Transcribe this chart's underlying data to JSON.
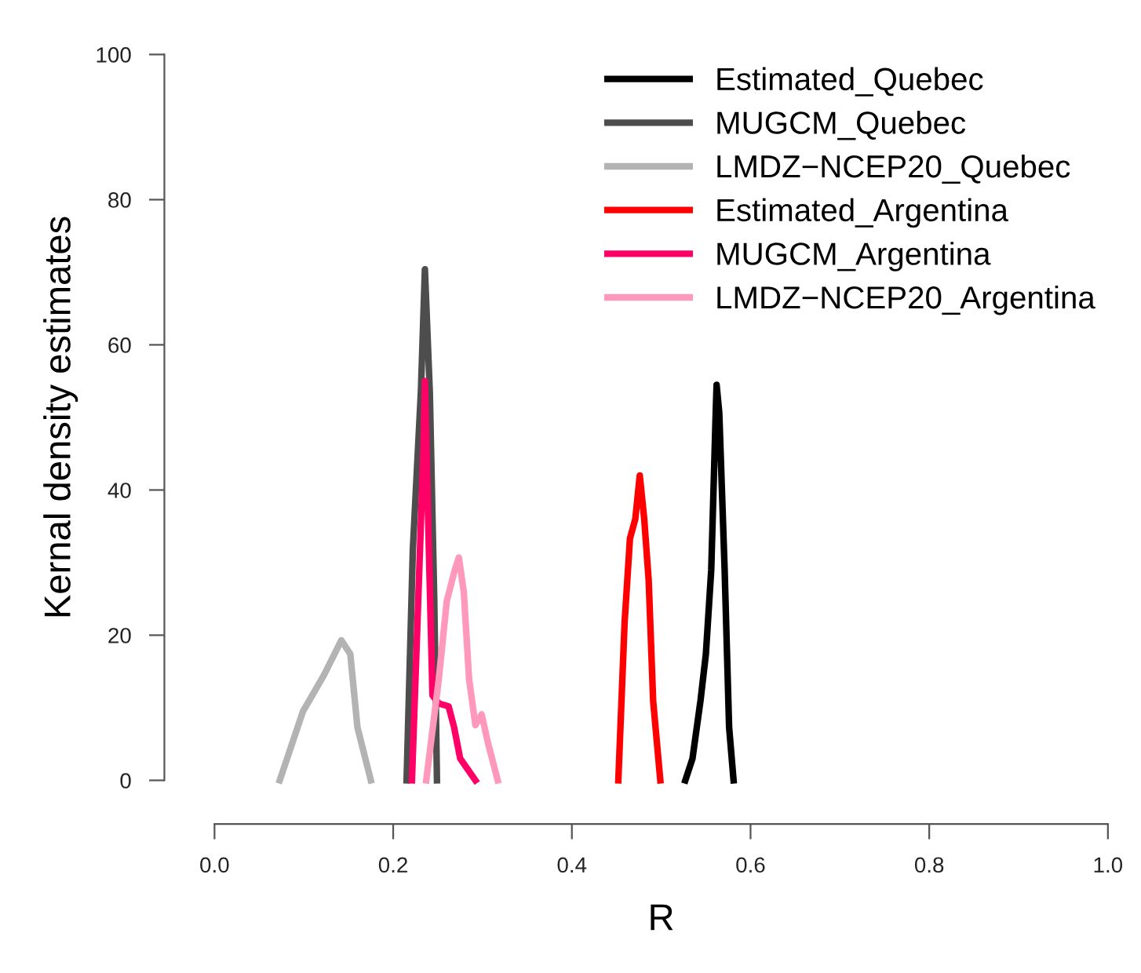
{
  "chart_data": {
    "type": "line",
    "xlabel": "R",
    "ylabel": "Kernal density estimates",
    "xlim": [
      0,
      1
    ],
    "ylim": [
      0,
      100
    ],
    "xticks": [
      {
        "value": 0,
        "label": "0.0"
      },
      0.2,
      0.4,
      0.6,
      0.8,
      {
        "value": 1,
        "label": "1.0"
      }
    ],
    "yticks": [
      0,
      20,
      40,
      60,
      80,
      100
    ],
    "legend": "top right",
    "grid": false,
    "line_style": "solid",
    "marker": "none",
    "series": [
      {
        "name": "Estimated_Quebec",
        "color": "#000000",
        "x": [
          0.527,
          0.535,
          0.544,
          0.55,
          0.556,
          0.561,
          0.562,
          0.565,
          0.571,
          0.576,
          0.581
        ],
        "values": [
          0,
          3,
          11,
          17.4,
          29,
          50.6,
          54.5,
          50.6,
          29,
          7.3,
          0
        ]
      },
      {
        "name": "MUGCM_Quebec",
        "color": "#4d4d4d",
        "x": [
          0.215,
          0.222,
          0.231,
          0.2355,
          0.241,
          0.246,
          0.249
        ],
        "values": [
          0,
          31.8,
          53.5,
          70.4,
          53.5,
          24.7,
          0
        ]
      },
      {
        "name": "LMDZ−NCEP20_Quebec",
        "color": "#b3b3b3",
        "x": [
          0.073,
          0.099,
          0.1225,
          0.142,
          0.152,
          0.16,
          0.175
        ],
        "values": [
          0,
          9.5,
          14.5,
          19.3,
          17.4,
          7.3,
          0
        ]
      },
      {
        "name": "Estimated_Argentina",
        "color": "#ff0000",
        "x": [
          0.452,
          0.459,
          0.465,
          0.471,
          0.476,
          0.481,
          0.486,
          0.491,
          0.499
        ],
        "values": [
          0,
          21.7,
          33.3,
          36,
          42,
          36,
          27.5,
          10.9,
          0
        ]
      },
      {
        "name": "MUGCM_Argentina",
        "color": "#ff0066",
        "x": [
          0.221,
          0.228,
          0.234,
          0.2355,
          0.2385,
          0.244,
          0.251,
          0.262,
          0.268,
          0.275,
          0.292
        ],
        "values": [
          0,
          24.7,
          46,
          55,
          39,
          11.7,
          10.6,
          10.2,
          7.4,
          3,
          0
        ]
      },
      {
        "name": "LMDZ−NCEP20_Argentina",
        "color": "#ff99bb",
        "x": [
          0.237,
          0.251,
          0.26,
          0.269,
          0.2735,
          0.279,
          0.285,
          0.292,
          0.299,
          0.306,
          0.317
        ],
        "values": [
          0,
          13.9,
          24.7,
          29,
          30.7,
          26,
          13.9,
          7.6,
          9.1,
          5.2,
          0
        ]
      }
    ]
  }
}
